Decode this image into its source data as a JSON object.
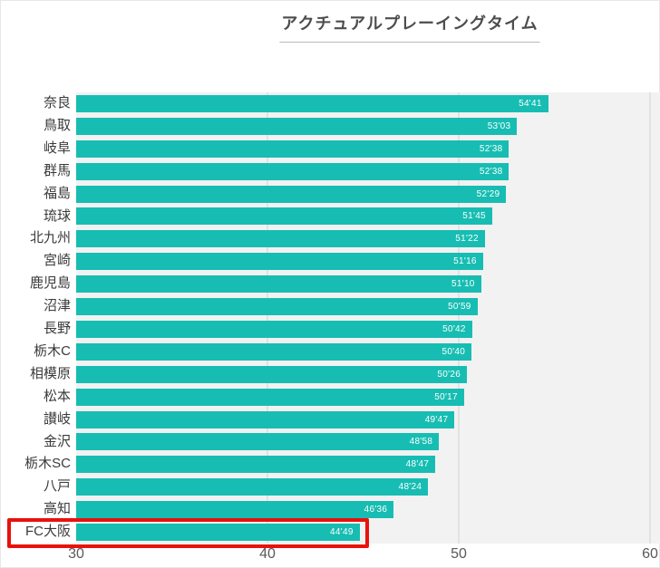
{
  "title": "アクチュアルプレーイングタイム",
  "colors": {
    "bar": "#17bdb2",
    "plot_background": "#f2f2f2",
    "gridline": "#e2e2e2",
    "highlight_box": "#e8120c",
    "value_label": "#ffffff",
    "category_label": "#3a3a3a",
    "title_text": "#4d4d4d"
  },
  "chart_data": {
    "type": "bar",
    "orientation": "horizontal",
    "title": "アクチュアルプレーイングタイム",
    "xlabel": "",
    "ylabel": "",
    "xlim": [
      30,
      60
    ],
    "x_ticks": [
      30,
      40,
      50,
      60
    ],
    "x_tick_labels": [
      "30",
      "40",
      "50",
      "60"
    ],
    "grid": true,
    "value_label_position": "inside-end",
    "highlighted_category": "FC大阪",
    "rows": [
      {
        "team": "奈良",
        "time": "54'41",
        "minutes": 54.68,
        "highlighted": false
      },
      {
        "team": "鳥取",
        "time": "53'03",
        "minutes": 53.05,
        "highlighted": false
      },
      {
        "team": "岐阜",
        "time": "52'38",
        "minutes": 52.63,
        "highlighted": false
      },
      {
        "team": "群馬",
        "time": "52'38",
        "minutes": 52.63,
        "highlighted": false
      },
      {
        "team": "福島",
        "time": "52'29",
        "minutes": 52.48,
        "highlighted": false
      },
      {
        "team": "琉球",
        "time": "51'45",
        "minutes": 51.75,
        "highlighted": false
      },
      {
        "team": "北九州",
        "time": "51'22",
        "minutes": 51.37,
        "highlighted": false
      },
      {
        "team": "宮崎",
        "time": "51'16",
        "minutes": 51.27,
        "highlighted": false
      },
      {
        "team": "鹿児島",
        "time": "51'10",
        "minutes": 51.17,
        "highlighted": false
      },
      {
        "team": "沼津",
        "time": "50'59",
        "minutes": 50.98,
        "highlighted": false
      },
      {
        "team": "長野",
        "time": "50'42",
        "minutes": 50.7,
        "highlighted": false
      },
      {
        "team": "栃木C",
        "time": "50'40",
        "minutes": 50.67,
        "highlighted": false
      },
      {
        "team": "相模原",
        "time": "50'26",
        "minutes": 50.43,
        "highlighted": false
      },
      {
        "team": "松本",
        "time": "50'17",
        "minutes": 50.28,
        "highlighted": false
      },
      {
        "team": "讃岐",
        "time": "49'47",
        "minutes": 49.78,
        "highlighted": false
      },
      {
        "team": "金沢",
        "time": "48'58",
        "minutes": 48.97,
        "highlighted": false
      },
      {
        "team": "栃木SC",
        "time": "48'47",
        "minutes": 48.78,
        "highlighted": false
      },
      {
        "team": "八戸",
        "time": "48'24",
        "minutes": 48.4,
        "highlighted": false
      },
      {
        "team": "高知",
        "time": "46'36",
        "minutes": 46.6,
        "highlighted": false
      },
      {
        "team": "FC大阪",
        "time": "44'49",
        "minutes": 44.82,
        "highlighted": true
      }
    ]
  }
}
